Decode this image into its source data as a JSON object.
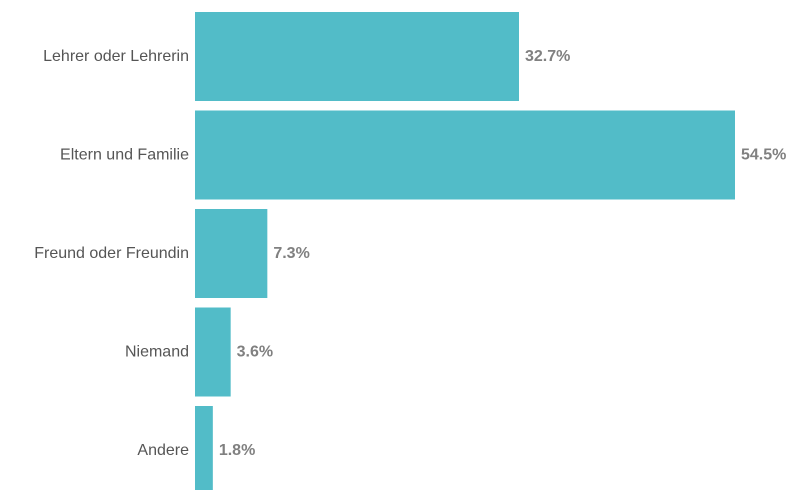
{
  "chart_data": {
    "type": "bar",
    "orientation": "horizontal",
    "categories": [
      "Lehrer oder Lehrerin",
      "Eltern und Familie",
      "Freund oder Freundin",
      "Niemand",
      "Andere"
    ],
    "values": [
      32.7,
      54.5,
      7.3,
      3.6,
      1.8
    ],
    "value_labels": [
      "32.7%",
      "54.5%",
      "7.3%",
      "3.6%",
      "1.8%"
    ],
    "unit": "%",
    "xlim": [
      0,
      54.5
    ],
    "grid": false,
    "legend": "none",
    "colors": {
      "bar": "#52bcc8",
      "category_text": "#555555",
      "value_text": "#808080"
    }
  }
}
